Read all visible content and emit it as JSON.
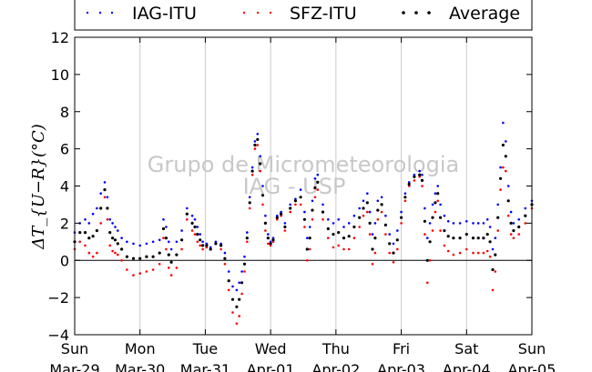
{
  "chart_data": {
    "type": "scatter",
    "ylabel": "ΔT_{U−R}(°C)",
    "ylim": [
      -4,
      12
    ],
    "yticks": [
      -4,
      -2,
      0,
      2,
      4,
      6,
      8,
      10,
      12
    ],
    "xlim": [
      0,
      7
    ],
    "xticks": [
      {
        "x": 0,
        "day": "Sun",
        "date": "Mar-29"
      },
      {
        "x": 1,
        "day": "Mon",
        "date": "Mar-30"
      },
      {
        "x": 2,
        "day": "Tue",
        "date": "Mar-31"
      },
      {
        "x": 3,
        "day": "Wed",
        "date": "Apr-01"
      },
      {
        "x": 4,
        "day": "Thu",
        "date": "Apr-02"
      },
      {
        "x": 5,
        "day": "Fri",
        "date": "Apr-03"
      },
      {
        "x": 6,
        "day": "Sat",
        "date": "Apr-04"
      },
      {
        "x": 7,
        "day": "Sun",
        "date": "Apr-05"
      }
    ],
    "grid": "vertical",
    "zero_line": true,
    "legend_position": "top",
    "watermark": [
      "Grupo de Micrometeorologia",
      "IAG - USP"
    ],
    "series": [
      {
        "name": "IAG-ITU",
        "color": "#0000ff",
        "x": [
          0.0,
          0.08,
          0.16,
          0.22,
          0.28,
          0.34,
          0.4,
          0.46,
          0.5,
          0.54,
          0.58,
          0.62,
          0.66,
          0.72,
          0.8,
          0.9,
          1.0,
          1.1,
          1.2,
          1.3,
          1.36,
          1.4,
          1.44,
          1.48,
          1.56,
          1.64,
          1.72,
          1.8,
          1.84,
          1.88,
          1.92,
          1.96,
          2.02,
          2.08,
          2.16,
          2.24,
          2.3,
          2.36,
          2.42,
          2.48,
          2.52,
          2.56,
          2.6,
          2.64,
          2.68,
          2.72,
          2.76,
          2.8,
          2.84,
          2.88,
          2.92,
          2.96,
          3.0,
          3.04,
          3.1,
          3.16,
          3.22,
          3.3,
          3.38,
          3.46,
          3.52,
          3.56,
          3.6,
          3.64,
          3.68,
          3.72,
          3.8,
          3.88,
          3.96,
          4.04,
          4.12,
          4.2,
          4.28,
          4.36,
          4.42,
          4.48,
          4.52,
          4.56,
          4.6,
          4.64,
          4.7,
          4.76,
          4.82,
          4.88,
          4.94,
          5.0,
          5.06,
          5.12,
          5.2,
          5.28,
          5.32,
          5.36,
          5.4,
          5.44,
          5.48,
          5.52,
          5.56,
          5.6,
          5.66,
          5.72,
          5.8,
          5.9,
          6.0,
          6.1,
          6.18,
          6.26,
          6.32,
          6.36,
          6.4,
          6.44,
          6.48,
          6.52,
          6.56,
          6.6,
          6.64,
          6.68,
          6.72,
          6.8,
          6.9,
          7.0
        ],
        "y": [
          1.5,
          2.0,
          2.2,
          2.0,
          2.5,
          2.8,
          3.6,
          4.2,
          3.4,
          2.2,
          2.0,
          1.8,
          1.6,
          1.2,
          1.0,
          0.9,
          0.8,
          0.9,
          1.0,
          1.1,
          2.2,
          1.8,
          1.0,
          0.6,
          1.0,
          1.6,
          2.8,
          2.4,
          2.2,
          1.8,
          1.4,
          1.0,
          0.9,
          0.7,
          1.0,
          0.9,
          0.4,
          -0.6,
          -1.4,
          -1.6,
          -1.2,
          -0.6,
          0.2,
          1.5,
          3.4,
          5.0,
          6.4,
          6.8,
          5.6,
          4.0,
          2.4,
          1.4,
          1.0,
          1.2,
          2.4,
          2.6,
          2.0,
          3.0,
          3.3,
          3.8,
          2.6,
          1.2,
          1.8,
          3.2,
          4.4,
          4.6,
          3.0,
          2.2,
          2.0,
          2.2,
          1.8,
          2.0,
          2.4,
          2.8,
          3.2,
          3.6,
          2.6,
          1.4,
          2.0,
          3.2,
          3.4,
          2.4,
          1.4,
          0.9,
          1.6,
          2.6,
          3.6,
          4.2,
          4.6,
          4.8,
          4.6,
          2.8,
          1.2,
          2.0,
          3.0,
          3.6,
          4.0,
          3.0,
          2.4,
          2.1,
          2.0,
          2.0,
          2.1,
          2.0,
          2.0,
          2.0,
          2.2,
          1.8,
          0.6,
          1.2,
          3.0,
          5.0,
          7.4,
          6.4,
          4.0,
          2.6,
          2.0,
          2.2,
          2.8,
          3.2
        ]
      },
      {
        "name": "SFZ-ITU",
        "color": "#ff0000",
        "x": [
          0.0,
          0.08,
          0.16,
          0.22,
          0.28,
          0.34,
          0.4,
          0.46,
          0.5,
          0.54,
          0.58,
          0.62,
          0.66,
          0.72,
          0.8,
          0.9,
          1.0,
          1.1,
          1.2,
          1.3,
          1.36,
          1.4,
          1.44,
          1.48,
          1.56,
          1.64,
          1.72,
          1.8,
          1.84,
          1.88,
          1.92,
          1.96,
          2.02,
          2.08,
          2.16,
          2.24,
          2.3,
          2.36,
          2.42,
          2.48,
          2.52,
          2.56,
          2.6,
          2.64,
          2.68,
          2.72,
          2.76,
          2.8,
          2.84,
          2.88,
          2.92,
          2.96,
          3.0,
          3.04,
          3.1,
          3.16,
          3.22,
          3.3,
          3.38,
          3.46,
          3.52,
          3.56,
          3.6,
          3.64,
          3.68,
          3.72,
          3.8,
          3.88,
          3.96,
          4.04,
          4.12,
          4.2,
          4.28,
          4.36,
          4.42,
          4.48,
          4.52,
          4.56,
          4.6,
          4.64,
          4.7,
          4.76,
          4.82,
          4.88,
          4.94,
          5.0,
          5.06,
          5.12,
          5.2,
          5.28,
          5.32,
          5.36,
          5.4,
          5.44,
          5.48,
          5.52,
          5.56,
          5.6,
          5.66,
          5.72,
          5.8,
          5.9,
          6.0,
          6.1,
          6.18,
          6.26,
          6.32,
          6.36,
          6.4,
          6.44,
          6.48,
          6.52,
          6.56,
          6.6,
          6.64,
          6.68,
          6.72,
          6.8,
          6.9,
          7.0
        ],
        "y": [
          0.6,
          1.0,
          0.8,
          0.4,
          0.2,
          0.4,
          2.0,
          3.4,
          2.2,
          0.8,
          0.5,
          0.4,
          0.3,
          0.0,
          -0.5,
          -0.8,
          -0.7,
          -0.6,
          -0.5,
          -0.2,
          1.2,
          0.6,
          -0.4,
          -0.8,
          -0.4,
          0.6,
          2.2,
          1.6,
          1.4,
          1.0,
          0.8,
          0.6,
          0.7,
          0.6,
          0.9,
          0.6,
          -0.2,
          -1.6,
          -2.8,
          -3.4,
          -3.0,
          -1.8,
          -0.6,
          1.0,
          2.8,
          4.6,
          6.0,
          6.2,
          4.8,
          3.0,
          1.6,
          0.9,
          0.8,
          1.0,
          2.2,
          2.4,
          1.6,
          2.6,
          3.0,
          3.0,
          1.8,
          0.0,
          0.6,
          2.2,
          3.4,
          3.8,
          2.2,
          1.2,
          0.7,
          0.8,
          0.6,
          0.6,
          1.2,
          1.8,
          2.4,
          2.6,
          1.4,
          -0.2,
          0.4,
          2.2,
          2.6,
          1.4,
          0.4,
          -0.1,
          0.6,
          2.0,
          3.2,
          4.0,
          4.3,
          4.5,
          4.0,
          1.4,
          -1.2,
          0.0,
          1.6,
          2.6,
          3.2,
          1.6,
          0.8,
          0.5,
          0.3,
          0.4,
          0.6,
          0.4,
          0.4,
          0.4,
          0.5,
          0.2,
          -1.6,
          -0.6,
          1.6,
          3.8,
          5.0,
          4.8,
          2.4,
          1.4,
          1.2,
          1.4,
          2.0,
          2.8
        ]
      },
      {
        "name": "Average",
        "color": "#000000",
        "x": [
          0.0,
          0.08,
          0.16,
          0.22,
          0.28,
          0.34,
          0.4,
          0.46,
          0.5,
          0.54,
          0.58,
          0.62,
          0.66,
          0.72,
          0.8,
          0.9,
          1.0,
          1.1,
          1.2,
          1.3,
          1.36,
          1.4,
          1.44,
          1.48,
          1.56,
          1.64,
          1.72,
          1.8,
          1.84,
          1.88,
          1.92,
          1.96,
          2.02,
          2.08,
          2.16,
          2.24,
          2.3,
          2.36,
          2.42,
          2.48,
          2.52,
          2.56,
          2.6,
          2.64,
          2.68,
          2.72,
          2.76,
          2.8,
          2.84,
          2.88,
          2.92,
          2.96,
          3.0,
          3.04,
          3.1,
          3.16,
          3.22,
          3.3,
          3.38,
          3.46,
          3.52,
          3.56,
          3.6,
          3.64,
          3.68,
          3.72,
          3.8,
          3.88,
          3.96,
          4.04,
          4.12,
          4.2,
          4.28,
          4.36,
          4.42,
          4.48,
          4.52,
          4.56,
          4.6,
          4.64,
          4.7,
          4.76,
          4.82,
          4.88,
          4.94,
          5.0,
          5.06,
          5.12,
          5.2,
          5.28,
          5.32,
          5.36,
          5.4,
          5.44,
          5.48,
          5.52,
          5.56,
          5.6,
          5.66,
          5.72,
          5.8,
          5.9,
          6.0,
          6.1,
          6.18,
          6.26,
          6.32,
          6.36,
          6.4,
          6.44,
          6.48,
          6.52,
          6.56,
          6.6,
          6.64,
          6.68,
          6.72,
          6.8,
          6.9,
          7.0
        ],
        "y": [
          1.0,
          1.5,
          1.5,
          1.2,
          1.3,
          1.6,
          2.8,
          3.8,
          2.8,
          1.5,
          1.2,
          1.1,
          0.9,
          0.6,
          0.2,
          0.1,
          0.1,
          0.2,
          0.2,
          0.4,
          1.7,
          1.2,
          0.3,
          -0.1,
          0.3,
          1.1,
          2.5,
          2.0,
          1.8,
          1.4,
          1.1,
          0.8,
          0.8,
          0.6,
          0.9,
          0.8,
          0.1,
          -1.1,
          -2.1,
          -2.5,
          -2.1,
          -1.2,
          -0.2,
          1.2,
          3.1,
          4.8,
          6.2,
          6.5,
          5.2,
          3.5,
          2.0,
          1.2,
          0.9,
          1.1,
          2.3,
          2.5,
          1.8,
          2.8,
          3.2,
          3.4,
          2.2,
          0.6,
          1.2,
          2.7,
          3.9,
          4.2,
          2.6,
          1.7,
          1.4,
          1.5,
          1.2,
          1.3,
          1.8,
          2.3,
          2.8,
          3.1,
          2.0,
          0.6,
          1.2,
          2.7,
          3.0,
          1.9,
          0.9,
          0.4,
          1.1,
          2.3,
          3.4,
          4.1,
          4.5,
          4.6,
          4.3,
          2.1,
          0.0,
          1.0,
          2.3,
          3.1,
          3.6,
          2.3,
          1.6,
          1.3,
          1.2,
          1.2,
          1.4,
          1.2,
          1.2,
          1.2,
          1.4,
          1.0,
          -0.5,
          0.3,
          2.3,
          4.4,
          6.2,
          5.6,
          3.2,
          2.0,
          1.6,
          1.8,
          2.4,
          3.0
        ]
      }
    ]
  }
}
